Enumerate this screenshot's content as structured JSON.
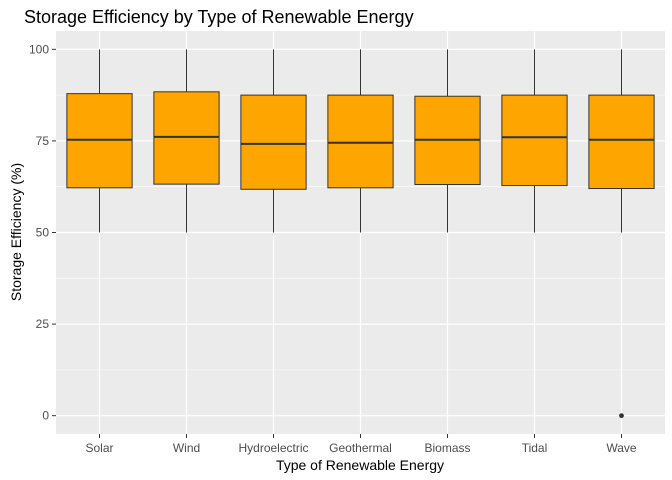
{
  "chart_data": {
    "type": "boxplot",
    "title": "Storage Efficiency by Type of Renewable Energy",
    "xlabel": "Type of Renewable Energy",
    "ylabel": "Storage Efficiency (%)",
    "ylim": [
      -5,
      105
    ],
    "yticks": [
      0,
      25,
      50,
      75,
      100
    ],
    "grid": true,
    "legend": "none",
    "categories": [
      "Solar",
      "Wind",
      "Hydroelectric",
      "Geothermal",
      "Biomass",
      "Tidal",
      "Wave"
    ],
    "boxes": [
      {
        "category": "Solar",
        "whisker_low": 50,
        "q1": 62.2,
        "median": 75.3,
        "q3": 87.9,
        "whisker_high": 100,
        "outliers": []
      },
      {
        "category": "Wind",
        "whisker_low": 50,
        "q1": 63.2,
        "median": 76.1,
        "q3": 88.4,
        "whisker_high": 100,
        "outliers": []
      },
      {
        "category": "Hydroelectric",
        "whisker_low": 50,
        "q1": 61.8,
        "median": 74.2,
        "q3": 87.5,
        "whisker_high": 100,
        "outliers": []
      },
      {
        "category": "Geothermal",
        "whisker_low": 50,
        "q1": 62.2,
        "median": 74.5,
        "q3": 87.5,
        "whisker_high": 100,
        "outliers": []
      },
      {
        "category": "Biomass",
        "whisker_low": 50,
        "q1": 63.1,
        "median": 75.3,
        "q3": 87.2,
        "whisker_high": 100,
        "outliers": []
      },
      {
        "category": "Tidal",
        "whisker_low": 50,
        "q1": 62.8,
        "median": 76.0,
        "q3": 87.5,
        "whisker_high": 100,
        "outliers": []
      },
      {
        "category": "Wave",
        "whisker_low": 50,
        "q1": 62.0,
        "median": 75.3,
        "q3": 87.5,
        "whisker_high": 100,
        "outliers": [
          0
        ]
      }
    ],
    "colors": {
      "box_fill": "#FFA500",
      "box_stroke": "#333333",
      "panel_background": "#EBEBEB",
      "grid_major": "#FFFFFF",
      "outlier": "#333333"
    }
  }
}
